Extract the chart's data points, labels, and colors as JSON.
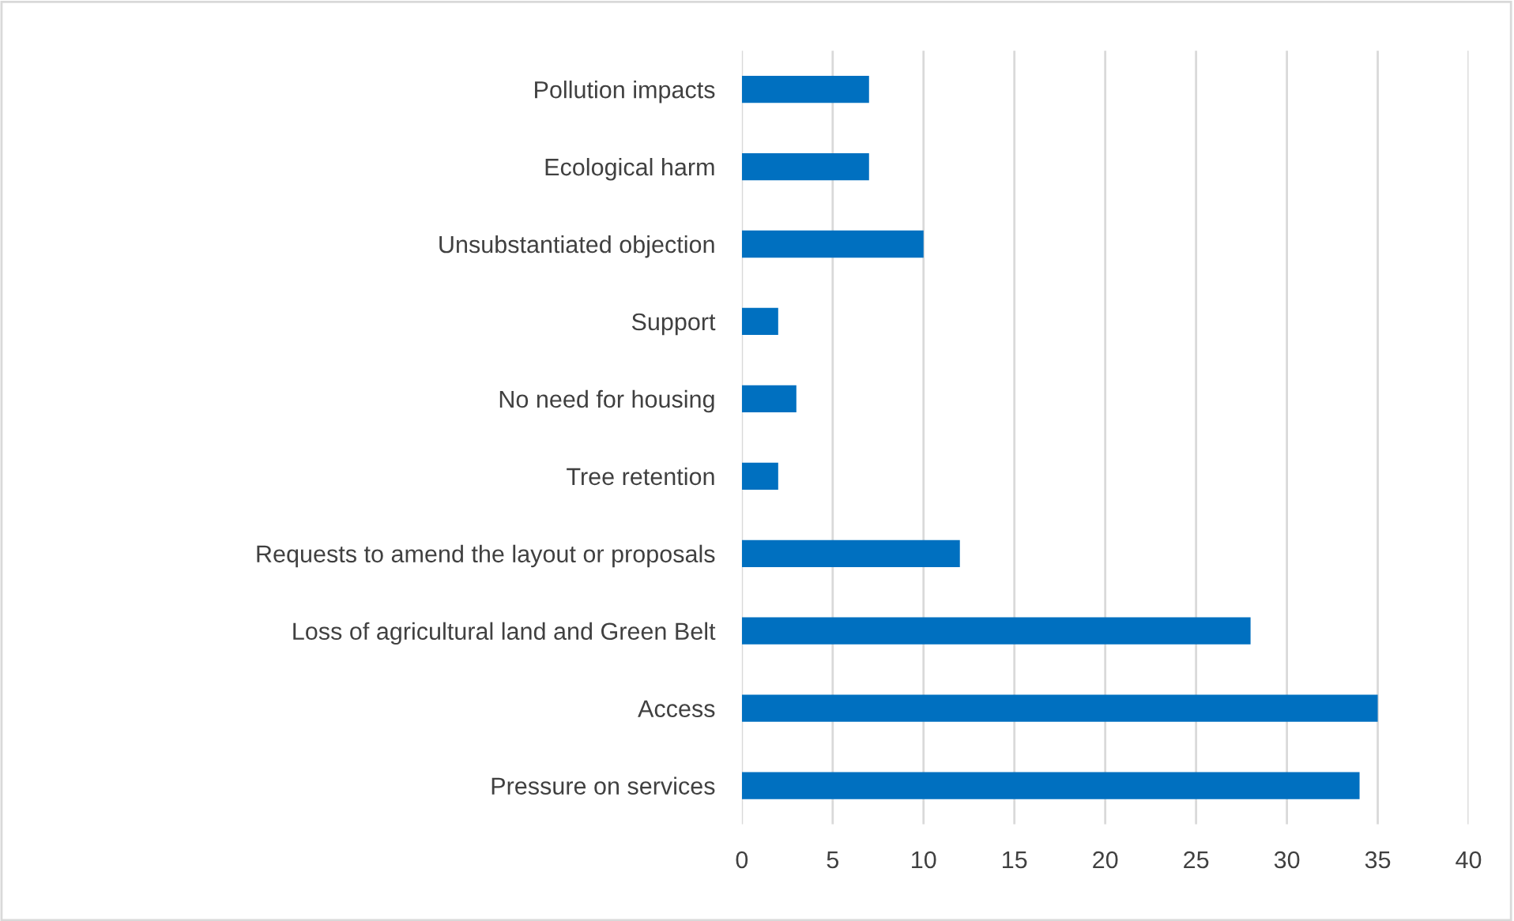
{
  "chart_data": {
    "type": "bar",
    "orientation": "horizontal",
    "categories": [
      "Pollution impacts",
      "Ecological harm",
      "Unsubstantiated objection",
      "Support",
      "No need for housing",
      "Tree retention",
      "Requests to amend the layout or proposals",
      "Loss of agricultural land and Green Belt",
      "Access",
      "Pressure on services"
    ],
    "values": [
      7,
      7,
      10,
      2,
      3,
      2,
      12,
      28,
      35,
      34
    ],
    "color": "#0070c0",
    "xlim": [
      0,
      40
    ],
    "xticks": [
      0,
      5,
      10,
      15,
      20,
      25,
      30,
      35,
      40
    ],
    "grid": "x"
  }
}
